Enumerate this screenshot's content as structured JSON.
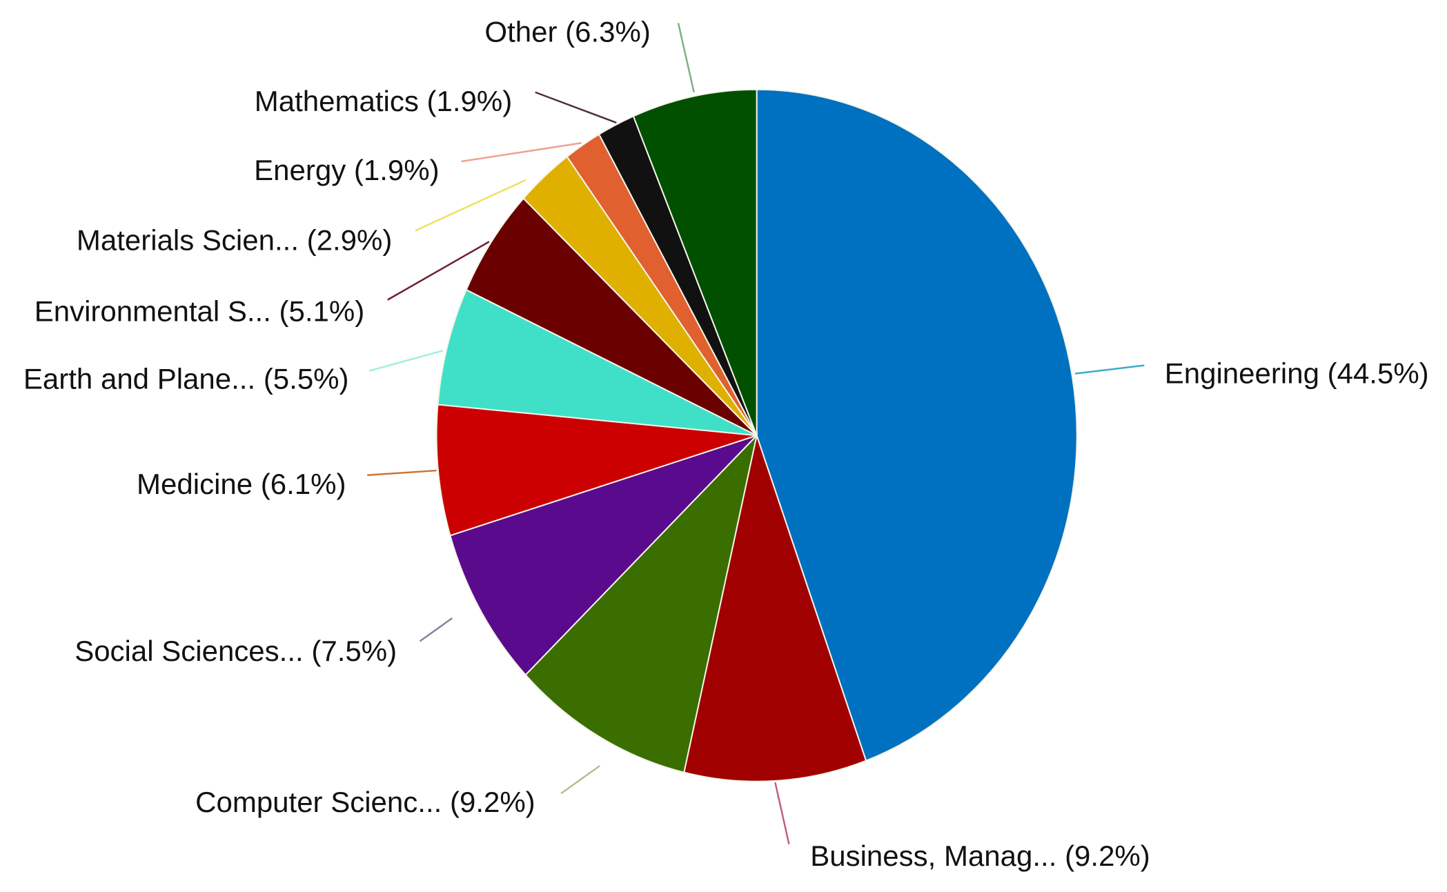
{
  "chart_data": {
    "type": "pie",
    "categories": [
      "Engineering",
      "Business, Manag...",
      "Computer Scienc...",
      "Social Sciences...",
      "Medicine",
      "Earth and Plane...",
      "Environmental S...",
      "Materials Scien...",
      "Energy",
      "Mathematics",
      "Other"
    ],
    "values": [
      44.5,
      9.2,
      9.2,
      7.5,
      6.1,
      5.5,
      5.1,
      2.9,
      1.9,
      1.9,
      6.3
    ],
    "value_labels": [
      "(44.5%)",
      "(9.2%)",
      "(9.2%)",
      "(7.5%)",
      "(6.1%)",
      "(5.5%)",
      "(5.1%)",
      "(2.9%)",
      "(1.9%)",
      "(1.9%)",
      "(6.3%)"
    ],
    "colors": [
      "#0070c0",
      "#a00000",
      "#3a6e00",
      "#5a0a8c",
      "#cc0000",
      "#40e0c8",
      "#6b0000",
      "#e0b000",
      "#e06030",
      "#111111",
      "#005000"
    ]
  }
}
